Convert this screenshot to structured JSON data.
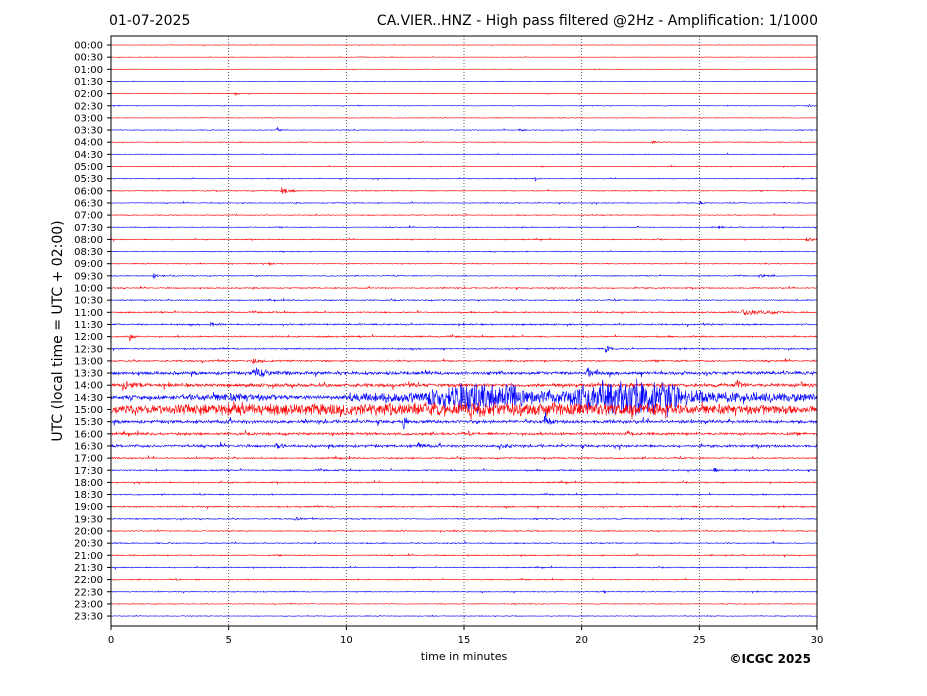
{
  "header": {
    "date": "01-07-2025",
    "title": "CA.VIER..HNZ - High pass filtered @2Hz - Amplification: 1/1000"
  },
  "footer": {
    "copyright": "©ICGC 2025"
  },
  "colors": {
    "odd_trace": "#ff0000",
    "even_trace": "#0000ff",
    "grid": "#333333",
    "axis": "#000000"
  },
  "chart_data": {
    "type": "line",
    "chart_kind": "helicorder (seismogram drum plot)",
    "xlabel": "time in minutes",
    "ylabel": "UTC (local time = UTC + 02:00)",
    "xlim": [
      0,
      30
    ],
    "x_ticks": [
      0,
      5,
      10,
      15,
      20,
      25,
      30
    ],
    "x_tick_labels": [
      "0",
      "5",
      "10",
      "15",
      "20",
      "25",
      "30"
    ],
    "vertical_grid_at_minutes": [
      5,
      10,
      15,
      20,
      25
    ],
    "grid_style": "dotted vertical lines",
    "row_labels": [
      "00:00",
      "00:30",
      "01:00",
      "01:30",
      "02:00",
      "02:30",
      "03:00",
      "03:30",
      "04:00",
      "04:30",
      "05:00",
      "05:30",
      "06:00",
      "06:30",
      "07:00",
      "07:30",
      "08:00",
      "08:30",
      "09:00",
      "09:30",
      "10:00",
      "10:30",
      "11:00",
      "11:30",
      "12:00",
      "12:30",
      "13:00",
      "13:30",
      "14:00",
      "14:30",
      "15:00",
      "15:30",
      "16:00",
      "16:30",
      "17:00",
      "17:30",
      "18:00",
      "18:30",
      "19:00",
      "19:30",
      "20:00",
      "20:30",
      "21:00",
      "21:30",
      "22:00",
      "22:30",
      "23:00",
      "23:30"
    ],
    "row_colors": [
      "red",
      "red",
      "red",
      "blue",
      "red",
      "blue",
      "red",
      "blue",
      "red",
      "blue",
      "red",
      "blue",
      "red",
      "blue",
      "red",
      "blue",
      "red",
      "blue",
      "red",
      "blue",
      "red",
      "blue",
      "red",
      "blue",
      "red",
      "blue",
      "red",
      "blue",
      "red",
      "blue",
      "red",
      "blue",
      "red",
      "blue",
      "red",
      "blue",
      "red",
      "blue",
      "red",
      "blue",
      "red",
      "blue",
      "red",
      "blue",
      "red",
      "blue",
      "red",
      "blue"
    ],
    "noise_amplitude_by_row": [
      0.2,
      0.2,
      0.2,
      0.2,
      0.25,
      0.25,
      0.25,
      0.3,
      0.3,
      0.3,
      0.3,
      0.3,
      0.35,
      0.35,
      0.35,
      0.35,
      0.4,
      0.35,
      0.35,
      0.35,
      0.45,
      0.45,
      0.55,
      0.6,
      0.6,
      0.55,
      0.65,
      1.3,
      1.4,
      1.6,
      2.5,
      1.3,
      1.0,
      1.0,
      0.6,
      0.55,
      0.5,
      0.45,
      0.55,
      0.45,
      0.45,
      0.45,
      0.45,
      0.4,
      0.4,
      0.35,
      0.3,
      0.3
    ],
    "events": [
      {
        "row": "02:00",
        "minute": 5.2,
        "amplitude": 3,
        "duration": 0.4
      },
      {
        "row": "02:30",
        "minute": 29.6,
        "amplitude": 3,
        "duration": 0.3
      },
      {
        "row": "03:30",
        "minute": 7.0,
        "amplitude": 3,
        "duration": 0.6
      },
      {
        "row": "03:30",
        "minute": 17.3,
        "amplitude": 3,
        "duration": 0.4
      },
      {
        "row": "04:00",
        "minute": 23.0,
        "amplitude": 3,
        "duration": 0.3
      },
      {
        "row": "05:30",
        "minute": 18.0,
        "amplitude": 3,
        "duration": 0.3
      },
      {
        "row": "06:00",
        "minute": 7.2,
        "amplitude": 4,
        "duration": 1.0
      },
      {
        "row": "06:30",
        "minute": 25.0,
        "amplitude": 3,
        "duration": 0.4
      },
      {
        "row": "07:30",
        "minute": 25.8,
        "amplitude": 3,
        "duration": 0.3
      },
      {
        "row": "08:00",
        "minute": 29.5,
        "amplitude": 3,
        "duration": 0.6
      },
      {
        "row": "09:00",
        "minute": 6.7,
        "amplitude": 3,
        "duration": 0.3
      },
      {
        "row": "09:30",
        "minute": 1.8,
        "amplitude": 3,
        "duration": 0.5
      },
      {
        "row": "09:30",
        "minute": 27.5,
        "amplitude": 2,
        "duration": 1.0
      },
      {
        "row": "11:00",
        "minute": 26.8,
        "amplitude": 3,
        "duration": 3.0
      },
      {
        "row": "11:30",
        "minute": 4.2,
        "amplitude": 3,
        "duration": 0.6
      },
      {
        "row": "12:00",
        "minute": 0.8,
        "amplitude": 4,
        "duration": 0.4
      },
      {
        "row": "12:30",
        "minute": 21.0,
        "amplitude": 4,
        "duration": 0.6
      },
      {
        "row": "13:00",
        "minute": 6.0,
        "amplitude": 3,
        "duration": 0.8
      },
      {
        "row": "13:30",
        "minute": 6.0,
        "amplitude": 5,
        "duration": 2.0
      },
      {
        "row": "13:30",
        "minute": 20.2,
        "amplitude": 6,
        "duration": 0.6
      },
      {
        "row": "14:00",
        "minute": 0.5,
        "amplitude": 4,
        "duration": 1.5
      },
      {
        "row": "14:00",
        "minute": 26.5,
        "amplitude": 7,
        "duration": 0.5
      },
      {
        "row": "14:00",
        "minute": 29.3,
        "amplitude": 4,
        "duration": 0.4
      },
      {
        "row": "14:30",
        "minute": 3.0,
        "amplitude": 2.5,
        "duration": 4.0
      },
      {
        "row": "14:30",
        "minute": 9.8,
        "amplitude": 6,
        "duration": 20.2
      },
      {
        "row": "14:30",
        "minute": 13.5,
        "amplitude": 9,
        "duration": 4.0
      },
      {
        "row": "14:30",
        "minute": 19.5,
        "amplitude": 12,
        "duration": 5.0
      },
      {
        "row": "15:00",
        "minute": 0.0,
        "amplitude": 4,
        "duration": 30.0
      },
      {
        "row": "15:30",
        "minute": 12.4,
        "amplitude": 8,
        "duration": 0.4
      },
      {
        "row": "15:30",
        "minute": 18.4,
        "amplitude": 11,
        "duration": 0.5
      },
      {
        "row": "16:00",
        "minute": 21.9,
        "amplitude": 5,
        "duration": 0.4
      },
      {
        "row": "16:30",
        "minute": 7.0,
        "amplitude": 4,
        "duration": 0.6
      },
      {
        "row": "16:30",
        "minute": 13.0,
        "amplitude": 5,
        "duration": 0.6
      },
      {
        "row": "16:30",
        "minute": 16.5,
        "amplitude": 4,
        "duration": 0.6
      },
      {
        "row": "17:30",
        "minute": 25.6,
        "amplitude": 4,
        "duration": 0.4
      },
      {
        "row": "19:30",
        "minute": 7.8,
        "amplitude": 3,
        "duration": 0.6
      },
      {
        "row": "22:30",
        "minute": 20.9,
        "amplitude": 2,
        "duration": 0.3
      }
    ]
  }
}
